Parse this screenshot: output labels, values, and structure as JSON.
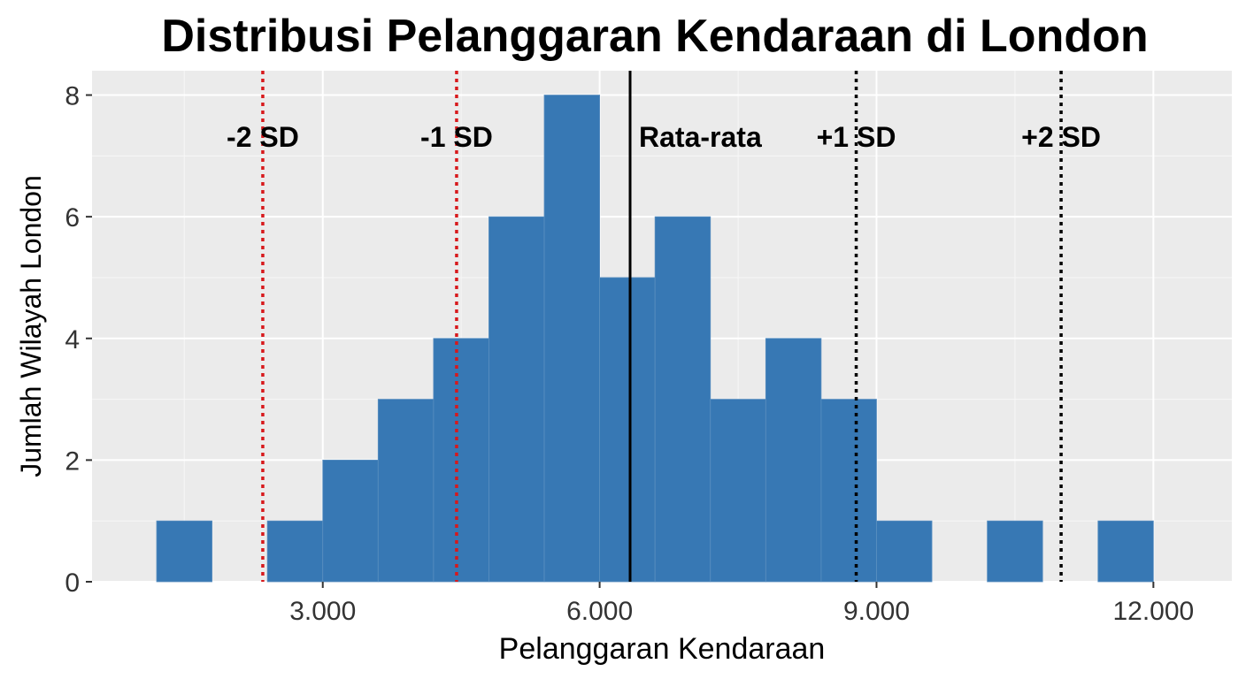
{
  "chart_data": {
    "type": "bar",
    "subtype": "histogram",
    "title": "Distribusi Pelanggaran Kendaraan di London",
    "xlabel": "Pelanggaran Kendaraan",
    "ylabel": "Jumlah Wilayah London",
    "xlim": [
      500,
      12850
    ],
    "ylim": [
      0,
      8.4
    ],
    "x_ticks": [
      3000,
      6000,
      9000,
      12000
    ],
    "x_tick_labels": [
      "3.000",
      "6.000",
      "9.000",
      "12.000"
    ],
    "y_ticks": [
      0,
      2,
      4,
      6,
      8
    ],
    "y_tick_labels": [
      "0",
      "2",
      "4",
      "6",
      "8"
    ],
    "grid": true,
    "bar_color": "#3778b4",
    "bins": [
      {
        "x0": 1200,
        "x1": 1800,
        "count": 1
      },
      {
        "x0": 2400,
        "x1": 3000,
        "count": 1
      },
      {
        "x0": 3000,
        "x1": 3600,
        "count": 2
      },
      {
        "x0": 3600,
        "x1": 4200,
        "count": 3
      },
      {
        "x0": 4200,
        "x1": 4800,
        "count": 4
      },
      {
        "x0": 4800,
        "x1": 5400,
        "count": 6
      },
      {
        "x0": 5400,
        "x1": 6000,
        "count": 8
      },
      {
        "x0": 6000,
        "x1": 6600,
        "count": 5
      },
      {
        "x0": 6600,
        "x1": 7200,
        "count": 6
      },
      {
        "x0": 7200,
        "x1": 7800,
        "count": 3
      },
      {
        "x0": 7800,
        "x1": 8400,
        "count": 4
      },
      {
        "x0": 8400,
        "x1": 9000,
        "count": 3
      },
      {
        "x0": 9000,
        "x1": 9600,
        "count": 1
      },
      {
        "x0": 10200,
        "x1": 10800,
        "count": 1
      },
      {
        "x0": 11400,
        "x1": 12000,
        "count": 1
      }
    ],
    "reference_lines": [
      {
        "label": "-2 SD",
        "x": 2350,
        "color": "#d7191c",
        "style": "dotted"
      },
      {
        "label": "-1 SD",
        "x": 4450,
        "color": "#d7191c",
        "style": "dotted"
      },
      {
        "label": "Rata-rata",
        "x": 6330,
        "color": "#000000",
        "style": "solid"
      },
      {
        "label": "+1 SD",
        "x": 8780,
        "color": "#000000",
        "style": "dotted"
      },
      {
        "label": "+2 SD",
        "x": 11000,
        "color": "#000000",
        "style": "dotted"
      }
    ]
  }
}
